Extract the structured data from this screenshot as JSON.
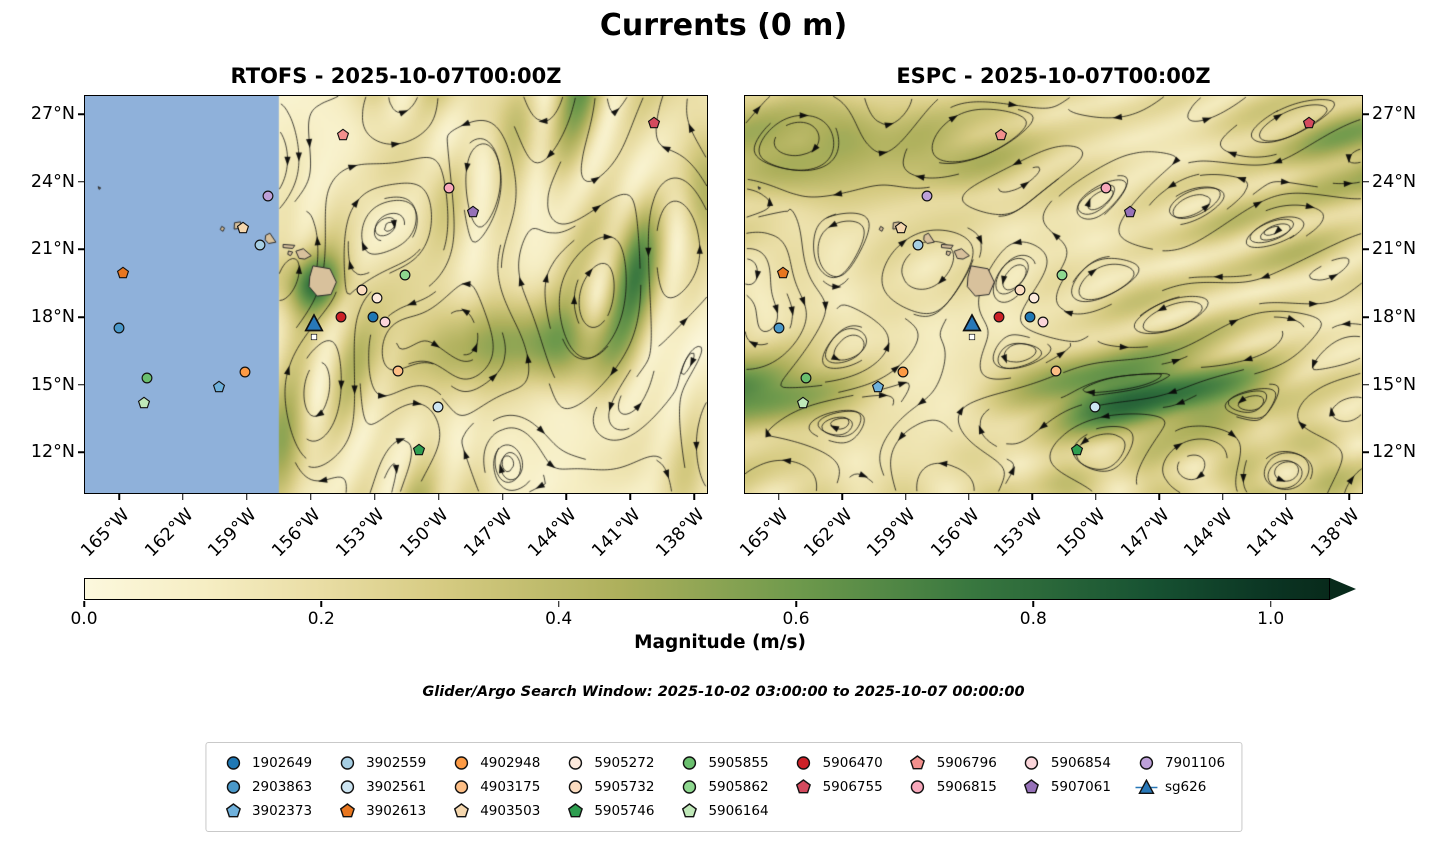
{
  "figure": {
    "title": "Currents (0 m)",
    "search_window": "Glider/Argo Search Window: 2025-10-02 03:00:00 to 2025-10-07 00:00:00"
  },
  "chart_data": {
    "type": "heatmap",
    "subtype": "ocean-current-magnitude-with-streamlines",
    "title": "Currents (0 m)",
    "field_description": "Surface current magnitude (m/s) shaded, streamlines with arrows, glider/Argo float positions over the Hawaii region",
    "panels": [
      {
        "id": "rtofs",
        "title": "RTOFS - 2025-10-07T00:00Z",
        "masked_lon_max": -157.5,
        "mask_color": "#8fb1da"
      },
      {
        "id": "espc",
        "title": "ESPC - 2025-10-07T00:00Z",
        "masked_lon_max": null,
        "mask_color": null
      }
    ],
    "lon_range": [
      -166.6,
      -137.4
    ],
    "lat_range": [
      10.2,
      27.8
    ],
    "x_ticks": [
      {
        "lon": -165,
        "label": "165°W"
      },
      {
        "lon": -162,
        "label": "162°W"
      },
      {
        "lon": -159,
        "label": "159°W"
      },
      {
        "lon": -156,
        "label": "156°W"
      },
      {
        "lon": -153,
        "label": "153°W"
      },
      {
        "lon": -150,
        "label": "150°W"
      },
      {
        "lon": -147,
        "label": "147°W"
      },
      {
        "lon": -144,
        "label": "144°W"
      },
      {
        "lon": -141,
        "label": "141°W"
      },
      {
        "lon": -138,
        "label": "138°W"
      }
    ],
    "y_ticks": [
      {
        "lat": 27,
        "label": "27°N"
      },
      {
        "lat": 24,
        "label": "24°N"
      },
      {
        "lat": 21,
        "label": "21°N"
      },
      {
        "lat": 18,
        "label": "18°N"
      },
      {
        "lat": 15,
        "label": "15°N"
      },
      {
        "lat": 12,
        "label": "12°N"
      }
    ],
    "colorbar": {
      "label": "Magnitude (m/s)",
      "min": 0,
      "max": 1,
      "display_max": 1.05,
      "extend": "max",
      "ticks": [
        "0.0",
        "0.2",
        "0.4",
        "0.6",
        "0.8",
        "1.0"
      ],
      "tick_values": [
        0,
        0.2,
        0.4,
        0.6,
        0.8,
        1.0
      ],
      "stops": [
        [
          "0",
          "#fcf8dd"
        ],
        [
          "0.1",
          "#f6eec4"
        ],
        [
          "0.2",
          "#e9dda4"
        ],
        [
          "0.3",
          "#d6cb82"
        ],
        [
          "0.45",
          "#aeb05c"
        ],
        [
          "0.6",
          "#6f9a4c"
        ],
        [
          "0.75",
          "#38773f"
        ],
        [
          "0.9",
          "#175232"
        ],
        [
          "1.0",
          "#0b3523"
        ],
        [
          "1.05",
          "#082a1b"
        ]
      ]
    },
    "markers": [
      {
        "id": "1902649",
        "shape": "circle",
        "color": "#1f78b4",
        "lon": -153.1,
        "lat": 18.0
      },
      {
        "id": "2903863",
        "shape": "circle",
        "color": "#4a98c9",
        "lon": -165.0,
        "lat": 17.5
      },
      {
        "id": "3902373",
        "shape": "pentagon",
        "color": "#6fb1dc",
        "lon": -160.3,
        "lat": 14.9
      },
      {
        "id": "3902559",
        "shape": "circle",
        "color": "#a6cee3",
        "lon": -158.4,
        "lat": 21.2
      },
      {
        "id": "3902561",
        "shape": "circle",
        "color": "#cde5f2",
        "lon": -150.05,
        "lat": 14.0
      },
      {
        "id": "3902613",
        "shape": "pentagon",
        "color": "#e8761f",
        "lon": -164.8,
        "lat": 19.95
      },
      {
        "id": "4902948",
        "shape": "circle",
        "color": "#fd9a44",
        "lon": -159.1,
        "lat": 15.55
      },
      {
        "id": "4903175",
        "shape": "circle",
        "color": "#fdbe85",
        "lon": -151.9,
        "lat": 15.6
      },
      {
        "id": "4903503",
        "shape": "pentagon",
        "color": "#f5d7ae",
        "lon": -159.2,
        "lat": 21.95
      },
      {
        "id": "5905272",
        "shape": "circle",
        "color": "#fdeadd",
        "lon": -152.9,
        "lat": 18.85
      },
      {
        "id": "5905732",
        "shape": "circle",
        "color": "#fbdcc0",
        "lon": -153.6,
        "lat": 19.2
      },
      {
        "id": "5905746",
        "shape": "pentagon",
        "color": "#2e9e50",
        "lon": -150.9,
        "lat": 12.1
      },
      {
        "id": "5905855",
        "shape": "circle",
        "color": "#6abf6e",
        "lon": -163.7,
        "lat": 15.3
      },
      {
        "id": "5905862",
        "shape": "circle",
        "color": "#8ed88f",
        "lon": -151.6,
        "lat": 19.85
      },
      {
        "id": "5906164",
        "shape": "pentagon",
        "color": "#bfe8b8",
        "lon": -163.85,
        "lat": 14.2
      },
      {
        "id": "5906470",
        "shape": "circle",
        "color": "#cc2027",
        "lon": -154.6,
        "lat": 18.0
      },
      {
        "id": "5906755",
        "shape": "pentagon",
        "color": "#d44a5e",
        "lon": -139.9,
        "lat": 26.6
      },
      {
        "id": "5906796",
        "shape": "pentagon",
        "color": "#f2908d",
        "lon": -154.5,
        "lat": 26.05
      },
      {
        "id": "5906815",
        "shape": "circle",
        "color": "#f8a8bb",
        "lon": -149.5,
        "lat": 23.7
      },
      {
        "id": "5906854",
        "shape": "circle",
        "color": "#fbd5da",
        "lon": -152.5,
        "lat": 17.8
      },
      {
        "id": "5907061",
        "shape": "pentagon",
        "color": "#9671b8",
        "lon": -148.4,
        "lat": 22.65
      },
      {
        "id": "7901106",
        "shape": "circle",
        "color": "#bda0d8",
        "lon": -158.0,
        "lat": 23.35
      },
      {
        "id": "sg626",
        "shape": "triangle",
        "color": "#2878b8",
        "lon": -155.85,
        "lat": 17.75
      },
      {
        "id": "waypoint",
        "shape": "square",
        "color": "#ffffff",
        "lon": -155.85,
        "lat": 17.1
      }
    ],
    "islands": [
      {
        "name": "hawaii",
        "color": "#d8c19c",
        "points": [
          [
            -156.05,
            19.78
          ],
          [
            -155.9,
            20.27
          ],
          [
            -155.1,
            20.14
          ],
          [
            -154.8,
            19.55
          ],
          [
            -155.05,
            19.0
          ],
          [
            -155.7,
            18.93
          ],
          [
            -156.08,
            19.35
          ]
        ]
      },
      {
        "name": "maui",
        "color": "#d8c19c",
        "points": [
          [
            -156.7,
            20.92
          ],
          [
            -156.35,
            21.03
          ],
          [
            -155.98,
            20.72
          ],
          [
            -156.28,
            20.57
          ],
          [
            -156.55,
            20.6
          ]
        ]
      },
      {
        "name": "molokai",
        "color": "#d8c19c",
        "points": [
          [
            -157.3,
            21.22
          ],
          [
            -156.75,
            21.18
          ],
          [
            -156.85,
            21.04
          ],
          [
            -157.3,
            21.08
          ]
        ]
      },
      {
        "name": "lanai",
        "color": "#d8c19c",
        "points": [
          [
            -157.05,
            20.93
          ],
          [
            -156.85,
            20.88
          ],
          [
            -156.95,
            20.72
          ],
          [
            -157.08,
            20.78
          ]
        ]
      },
      {
        "name": "oahu",
        "color": "#d8c19c",
        "points": [
          [
            -158.12,
            21.62
          ],
          [
            -157.92,
            21.72
          ],
          [
            -157.64,
            21.32
          ],
          [
            -157.98,
            21.26
          ],
          [
            -158.14,
            21.42
          ]
        ]
      },
      {
        "name": "kauai",
        "color": "#d8c19c",
        "points": [
          [
            -159.58,
            22.18
          ],
          [
            -159.3,
            22.22
          ],
          [
            -159.28,
            21.94
          ],
          [
            -159.6,
            21.9
          ]
        ]
      },
      {
        "name": "niihau",
        "color": "#d8c19c",
        "points": [
          [
            -160.18,
            22.02
          ],
          [
            -160.05,
            21.95
          ],
          [
            -160.12,
            21.8
          ],
          [
            -160.25,
            21.88
          ]
        ]
      },
      {
        "name": "shoal",
        "color": "#777777",
        "points": [
          [
            -165.98,
            23.78
          ],
          [
            -165.86,
            23.72
          ],
          [
            -165.94,
            23.66
          ]
        ]
      }
    ]
  },
  "legend": {
    "entries": [
      {
        "label": "1902649",
        "shape": "circle",
        "color": "#1f78b4"
      },
      {
        "label": "2903863",
        "shape": "circle",
        "color": "#4a98c9"
      },
      {
        "label": "3902373",
        "shape": "pentagon",
        "color": "#6fb1dc"
      },
      {
        "label": "3902559",
        "shape": "circle",
        "color": "#a6cee3"
      },
      {
        "label": "3902561",
        "shape": "circle",
        "color": "#cde5f2"
      },
      {
        "label": "3902613",
        "shape": "pentagon",
        "color": "#e8761f"
      },
      {
        "label": "4902948",
        "shape": "circle",
        "color": "#fd9a44"
      },
      {
        "label": "4903175",
        "shape": "circle",
        "color": "#fdbe85"
      },
      {
        "label": "4903503",
        "shape": "pentagon",
        "color": "#f5d7ae"
      },
      {
        "label": "5905272",
        "shape": "circle",
        "color": "#fdeadd"
      },
      {
        "label": "5905732",
        "shape": "circle",
        "color": "#fbdcc0"
      },
      {
        "label": "5905746",
        "shape": "pentagon",
        "color": "#2e9e50"
      },
      {
        "label": "5905855",
        "shape": "circle",
        "color": "#6abf6e"
      },
      {
        "label": "5905862",
        "shape": "circle",
        "color": "#8ed88f"
      },
      {
        "label": "5906164",
        "shape": "pentagon",
        "color": "#bfe8b8"
      },
      {
        "label": "5906470",
        "shape": "circle",
        "color": "#cc2027"
      },
      {
        "label": "5906755",
        "shape": "pentagon",
        "color": "#d44a5e"
      },
      {
        "label": "5906796",
        "shape": "pentagon",
        "color": "#f2908d"
      },
      {
        "label": "5906815",
        "shape": "circle",
        "color": "#f8a8bb"
      },
      {
        "label": "5906854",
        "shape": "circle",
        "color": "#fbd5da"
      },
      {
        "label": "5907061",
        "shape": "pentagon",
        "color": "#9671b8"
      },
      {
        "label": "7901106",
        "shape": "circle",
        "color": "#bda0d8"
      },
      {
        "label": "sg626",
        "shape": "triangle",
        "color": "#2878b8"
      }
    ]
  }
}
